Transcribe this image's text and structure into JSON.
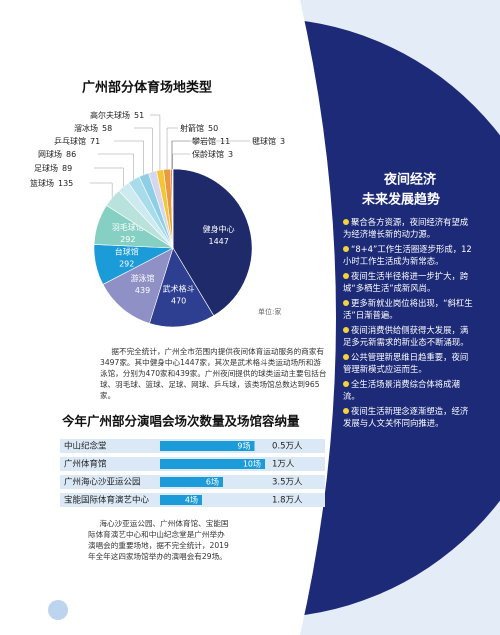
{
  "chart_data": [
    {
      "type": "pie",
      "title": "广州部分体育场地类型",
      "unit": "单位:家",
      "categories": [
        "健身中心",
        "武术格斗",
        "游泳馆",
        "台球馆",
        "羽毛球馆",
        "篮球场",
        "足球场",
        "网球场",
        "乒乓球馆",
        "溜冰场",
        "高尔夫球场",
        "射箭馆",
        "攀岩馆",
        "毽球馆",
        "保龄球馆"
      ],
      "values": [
        1447,
        470,
        439,
        292,
        292,
        135,
        89,
        86,
        71,
        58,
        51,
        50,
        11,
        3,
        3
      ],
      "colors": [
        "#1f2a6b",
        "#2e3f92",
        "#8e90c6",
        "#1b9bd7",
        "#86d0c3",
        "#b9e2dd",
        "#cdeaf0",
        "#a8dcea",
        "#8fcfe6",
        "#d6d6ee",
        "#f3c63a",
        "#e99a3c",
        "#e0524f",
        "#c9a0d0",
        "#f0a0b8"
      ],
      "note": "据不完全统计，广州全市范围内提供夜间体育运动服务的商家有3497家。其中健身中心1447家，其次是武术格斗类运动场所和游泳馆，分别为470家和439家。广州夜间提供的球类运动主要包括台球、羽毛球、篮球、足球、网球、乒乓球，该类场馆总数达到965家。"
    },
    {
      "type": "bar",
      "title": "今年广州部分演唱会场次数量及场馆容纳量",
      "categories": [
        "中山纪念堂",
        "广州体育馆",
        "广州海心沙亚运公园",
        "宝能国际体育演艺中心"
      ],
      "values": [
        9,
        10,
        6,
        4
      ],
      "value_labels": [
        "9场",
        "10场",
        "6场",
        "4场"
      ],
      "capacity_labels": [
        "0.5万人",
        "1万人",
        "3.5万人",
        "1.8万人"
      ],
      "xlim": [
        0,
        10
      ],
      "color": "#1b9bd7",
      "note": "海心沙亚运公园、广州体育馆、宝能国际体育演艺中心和中山纪念堂是广州举办演唱会的重要场地，据不完全统计，2019年全年这四家场馆举办的演唱会有29场。"
    }
  ],
  "sidebar": {
    "title": [
      "夜间经济",
      "未来发展趋势"
    ],
    "items": [
      "聚合各方资源，夜间经济有望成为经济增长新的动力源。",
      "“8+4”工作生活圈逐步形成，12小时工作生活成为新常态。",
      "夜间生活半径将进一步扩大，跨城“多栖生活”成新风尚。",
      "更多新就业岗位将出现，“斜杠生活”日渐普遍。",
      "夜间消费供给侧获得大发展，满足多元新需求的新业态不断涌现。",
      "公共管理新思维日趋重要，夜间管理新模式应运而生。",
      "全生活场景消费综合体将成潮流。",
      "夜间生活新理念逐渐塑造，经济发展与人文关怀同向推进。"
    ]
  }
}
